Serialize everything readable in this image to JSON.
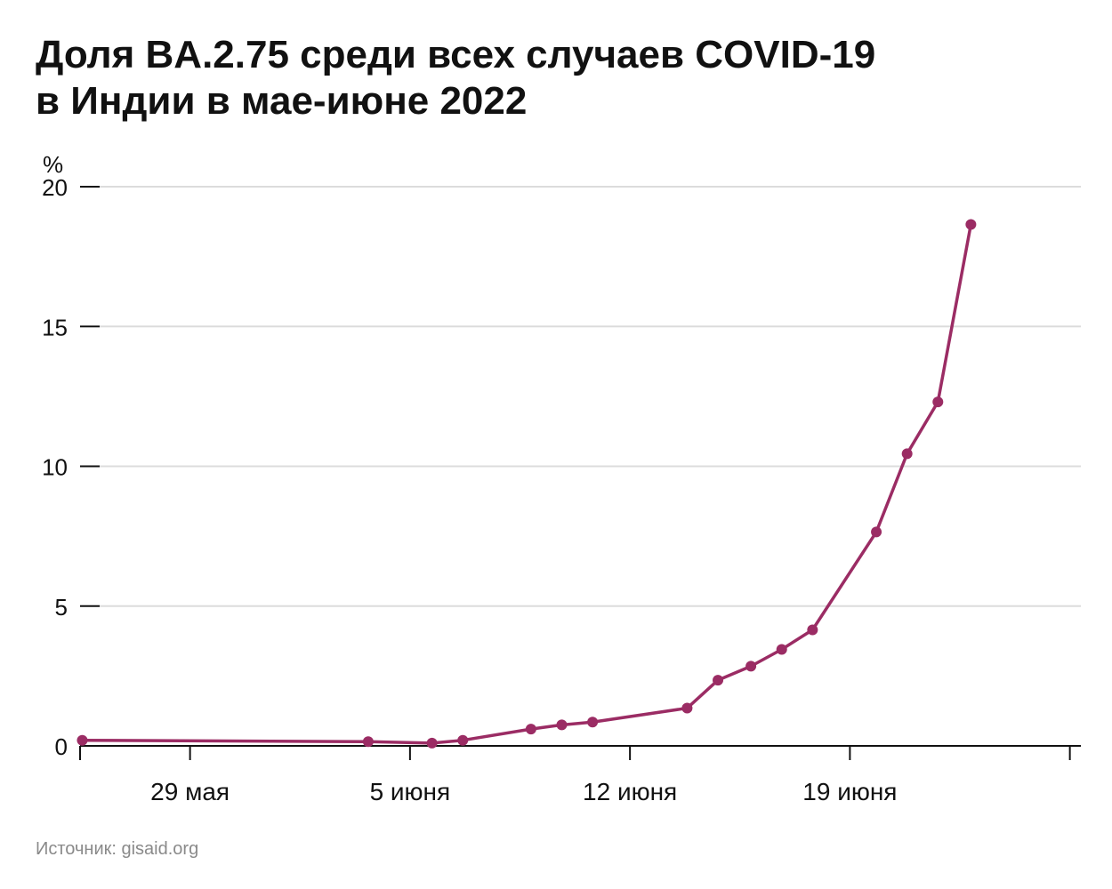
{
  "title_line1": "Доля BA.2.75 среди всех случаев COVID-19",
  "title_line2": "в Индии в мае-июне 2022",
  "source": "Источник: gisaid.org",
  "colors": {
    "line": "#9b2c64",
    "grid": "#dcdcdc",
    "axis": "#111111"
  },
  "chart_data": {
    "type": "line",
    "title": "Доля BA.2.75 среди всех случаев COVID-19 в Индии в мае-июне 2022",
    "ylabel": "%",
    "xlabel": "",
    "ylim": [
      0,
      20
    ],
    "xlim": [
      -5.0,
      40.5
    ],
    "yticks": [
      0,
      5,
      10,
      15,
      20
    ],
    "xticks": [
      {
        "x": 0,
        "label": "29 мая"
      },
      {
        "x": 10,
        "label": "5 июня"
      },
      {
        "x": 20,
        "label": "12 июня"
      },
      {
        "x": 30,
        "label": "19 июня"
      }
    ],
    "x_tick_marks": [
      -5,
      0,
      10,
      20,
      30,
      40
    ],
    "series": [
      {
        "name": "BA.2.75",
        "points": [
          {
            "x": -4.9,
            "y": 0.2
          },
          {
            "x": 8.1,
            "y": 0.15
          },
          {
            "x": 11.0,
            "y": 0.1
          },
          {
            "x": 12.4,
            "y": 0.2
          },
          {
            "x": 15.5,
            "y": 0.6
          },
          {
            "x": 16.9,
            "y": 0.75
          },
          {
            "x": 18.3,
            "y": 0.85
          },
          {
            "x": 22.6,
            "y": 1.35
          },
          {
            "x": 24.0,
            "y": 2.35
          },
          {
            "x": 25.5,
            "y": 2.85
          },
          {
            "x": 26.9,
            "y": 3.45
          },
          {
            "x": 28.3,
            "y": 4.15
          },
          {
            "x": 31.2,
            "y": 7.65
          },
          {
            "x": 32.6,
            "y": 10.45
          },
          {
            "x": 34.0,
            "y": 12.3
          },
          {
            "x": 35.5,
            "y": 18.65
          }
        ]
      }
    ]
  }
}
